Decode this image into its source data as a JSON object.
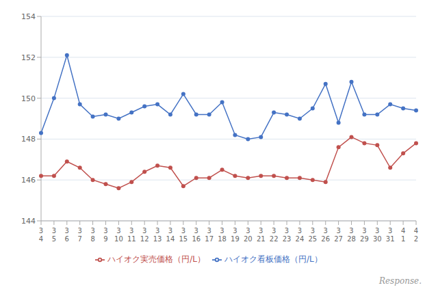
{
  "chart_data": {
    "type": "line",
    "categories": [
      "3\n4",
      "3\n5",
      "3\n6",
      "3\n7",
      "3\n8",
      "3\n9",
      "3\n10",
      "3\n11",
      "3\n12",
      "3\n13",
      "3\n14",
      "3\n15",
      "3\n16",
      "3\n17",
      "3\n18",
      "3\n19",
      "3\n20",
      "3\n21",
      "3\n22",
      "3\n23",
      "3\n24",
      "3\n25",
      "3\n26",
      "3\n27",
      "3\n28",
      "3\n29",
      "3\n30",
      "3\n31",
      "4\n1",
      "4\n2"
    ],
    "series": [
      {
        "name": "ハイオク看板価格（円/L）",
        "color": "#4472C4",
        "marker": "circle",
        "values": [
          148.3,
          150.0,
          152.1,
          149.7,
          149.1,
          149.2,
          149.0,
          149.3,
          149.6,
          149.7,
          149.2,
          150.2,
          149.2,
          149.2,
          149.8,
          148.2,
          148.0,
          148.1,
          149.3,
          149.2,
          149.0,
          149.5,
          150.7,
          148.8,
          150.8,
          149.2,
          149.2,
          149.7,
          149.5,
          149.4
        ]
      },
      {
        "name": "ハイオク実売価格（円/L）",
        "color": "#C0504D",
        "marker": "circle",
        "values": [
          146.2,
          146.2,
          146.9,
          146.6,
          146.0,
          145.8,
          145.6,
          145.9,
          146.4,
          146.7,
          146.6,
          145.7,
          146.1,
          146.1,
          146.5,
          146.2,
          146.1,
          146.2,
          146.2,
          146.1,
          146.1,
          146.0,
          145.9,
          147.6,
          148.1,
          147.8,
          147.7,
          146.6,
          147.3,
          147.8
        ]
      }
    ],
    "ylim": [
      144,
      154
    ],
    "yticks": [
      144,
      146,
      148,
      150,
      152,
      154
    ],
    "grid": true,
    "legend": "bottom",
    "annotations": [
      "Response."
    ]
  }
}
